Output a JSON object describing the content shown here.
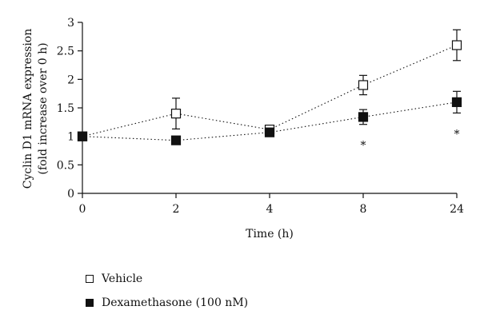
{
  "chart_data": {
    "type": "line",
    "categories": [
      "0",
      "2",
      "4",
      "8",
      "24"
    ],
    "ylabel_line1": "Cyclin D1 mRNA expression",
    "ylabel_line2": "(fold increase over 0 h)",
    "xlabel": "Time (h)",
    "ylim": [
      0,
      3
    ],
    "yticks": [
      "0",
      "0.5",
      "1",
      "1.5",
      "2",
      "2.5",
      "3"
    ],
    "grid": false,
    "legend_position": "bottom-left",
    "series": [
      {
        "name": "Vehicle",
        "marker": "open-square",
        "values": [
          1.0,
          1.4,
          1.12,
          1.9,
          2.6
        ],
        "errors": [
          0,
          0.27,
          0,
          0.17,
          0.27
        ]
      },
      {
        "name": "Dexamethasone (100 nM)",
        "marker": "filled-square",
        "values": [
          1.0,
          0.93,
          1.07,
          1.34,
          1.6
        ],
        "errors": [
          0,
          0.07,
          0,
          0.13,
          0.19
        ]
      }
    ],
    "annotations": [
      {
        "category": "8",
        "text": "*"
      },
      {
        "category": "24",
        "text": "*"
      }
    ]
  },
  "colors": {
    "ink": "#111111",
    "open_fill": "#ffffff"
  }
}
